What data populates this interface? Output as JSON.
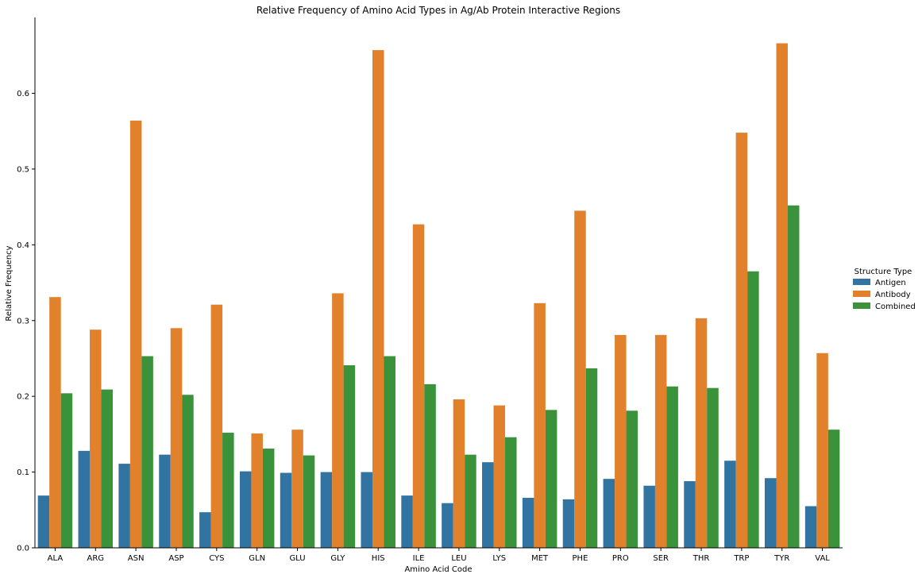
{
  "chart_data": {
    "type": "bar",
    "title": "Relative Frequency of Amino Acid Types in Ag/Ab Protein Interactive Regions",
    "xlabel": "Amino Acid Code",
    "ylabel": "Relative Frequency",
    "ylim": [
      0,
      0.7
    ],
    "yticks": [
      "0.0",
      "0.1",
      "0.2",
      "0.3",
      "0.4",
      "0.5",
      "0.6"
    ],
    "grid": false,
    "legend": {
      "title": "Structure Type",
      "placement": "right"
    },
    "categories": [
      "ALA",
      "ARG",
      "ASN",
      "ASP",
      "CYS",
      "GLN",
      "GLU",
      "GLY",
      "HIS",
      "ILE",
      "LEU",
      "LYS",
      "MET",
      "PHE",
      "PRO",
      "SER",
      "THR",
      "TRP",
      "TYR",
      "VAL"
    ],
    "series": [
      {
        "name": "Antigen",
        "color": "#3274a1",
        "values": [
          0.069,
          0.128,
          0.111,
          0.123,
          0.047,
          0.101,
          0.099,
          0.1,
          0.1,
          0.069,
          0.059,
          0.113,
          0.066,
          0.064,
          0.091,
          0.082,
          0.088,
          0.115,
          0.092,
          0.055
        ]
      },
      {
        "name": "Antibody",
        "color": "#e1812c",
        "values": [
          0.331,
          0.288,
          0.564,
          0.29,
          0.321,
          0.151,
          0.156,
          0.336,
          0.657,
          0.427,
          0.196,
          0.188,
          0.323,
          0.445,
          0.281,
          0.281,
          0.303,
          0.548,
          0.666,
          0.257
        ]
      },
      {
        "name": "Combined",
        "color": "#3a923a",
        "values": [
          0.204,
          0.209,
          0.253,
          0.202,
          0.152,
          0.131,
          0.122,
          0.241,
          0.253,
          0.216,
          0.123,
          0.146,
          0.182,
          0.237,
          0.181,
          0.213,
          0.211,
          0.365,
          0.452,
          0.156
        ]
      }
    ]
  }
}
